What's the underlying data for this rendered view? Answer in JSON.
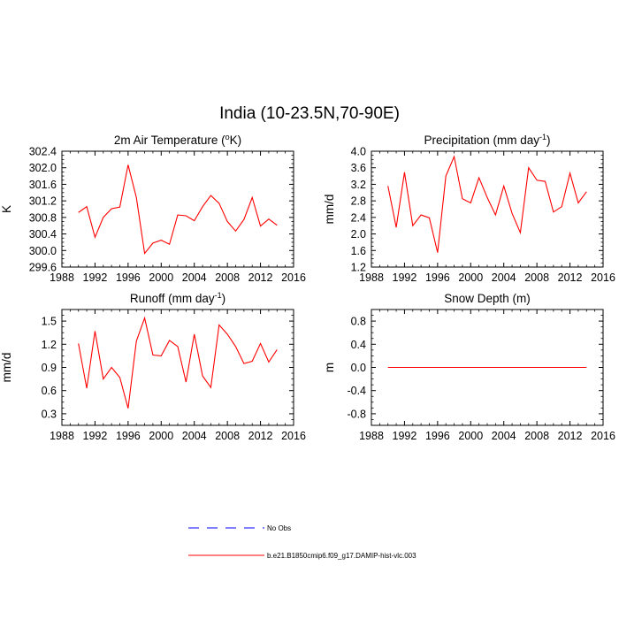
{
  "title": "India (10-23.5N,70-90E)",
  "colors": {
    "series": "#ff0000",
    "obs": "#0000ff",
    "axis": "#000000"
  },
  "legend": [
    {
      "label": "No Obs",
      "style": "dashed",
      "color": "#0000ff"
    },
    {
      "label": "b.e21.B1850cmip6.f09_g17.DAMIP-hist-vlc.003",
      "style": "solid",
      "color": "#ff0000"
    }
  ],
  "chart_data": [
    {
      "type": "line",
      "title": "2m Air Temperature",
      "title_unit_pre": " (",
      "title_sup": "o",
      "title_unit_post": "K)",
      "xlabel": "",
      "ylabel": "K",
      "xlim": [
        1988,
        2016
      ],
      "ylim": [
        299.6,
        302.4
      ],
      "xticks": [
        1988,
        1992,
        1996,
        2000,
        2004,
        2008,
        2012,
        2016
      ],
      "xtick_labels": [
        "1988",
        "1992",
        "1996",
        "2000",
        "2004",
        "2008",
        "2012",
        "2016"
      ],
      "yticks": [
        299.6,
        300.0,
        300.4,
        300.8,
        301.2,
        301.6,
        302.0,
        302.4
      ],
      "ytick_labels": [
        "299.6",
        "300.0",
        "300.4",
        "300.8",
        "301.2",
        "301.6",
        "302.0",
        "302.4"
      ],
      "series": [
        {
          "name": "b.e21.B1850cmip6.f09_g17.DAMIP-hist-vlc.003",
          "x": [
            1990,
            1991,
            1992,
            1993,
            1994,
            1995,
            1996,
            1997,
            1998,
            1999,
            2000,
            2001,
            2002,
            2003,
            2004,
            2005,
            2006,
            2007,
            2008,
            2009,
            2010,
            2011,
            2012,
            2013,
            2014
          ],
          "y": [
            300.92,
            301.06,
            300.32,
            300.8,
            301.01,
            301.05,
            302.07,
            301.28,
            299.93,
            300.18,
            300.25,
            300.15,
            300.86,
            300.84,
            300.72,
            301.06,
            301.33,
            301.14,
            300.7,
            300.47,
            300.75,
            301.28,
            300.59,
            300.76,
            300.61
          ]
        }
      ]
    },
    {
      "type": "line",
      "title": "Precipitation",
      "title_unit_pre": " (mm day",
      "title_sup": "-1",
      "title_unit_post": ")",
      "xlabel": "",
      "ylabel": "mm/d",
      "xlim": [
        1988,
        2016
      ],
      "ylim": [
        1.2,
        4.0
      ],
      "xticks": [
        1988,
        1992,
        1996,
        2000,
        2004,
        2008,
        2012,
        2016
      ],
      "xtick_labels": [
        "1988",
        "1992",
        "1996",
        "2000",
        "2004",
        "2008",
        "2012",
        "2016"
      ],
      "yticks": [
        1.2,
        1.6,
        2.0,
        2.4,
        2.8,
        3.2,
        3.6,
        4.0
      ],
      "ytick_labels": [
        "1.2",
        "1.6",
        "2.0",
        "2.4",
        "2.8",
        "3.2",
        "3.6",
        "4.0"
      ],
      "series": [
        {
          "name": "b.e21.B1850cmip6.f09_g17.DAMIP-hist-vlc.003",
          "x": [
            1990,
            1991,
            1992,
            1993,
            1994,
            1995,
            1996,
            1997,
            1998,
            1999,
            2000,
            2001,
            2002,
            2003,
            2004,
            2005,
            2006,
            2007,
            2008,
            2009,
            2010,
            2011,
            2012,
            2013,
            2014
          ],
          "y": [
            3.16,
            2.16,
            3.49,
            2.2,
            2.46,
            2.39,
            1.55,
            3.4,
            3.87,
            2.85,
            2.75,
            3.36,
            2.88,
            2.46,
            3.16,
            2.5,
            2.03,
            3.6,
            3.3,
            3.27,
            2.53,
            2.66,
            3.47,
            2.75,
            3.02
          ]
        }
      ]
    },
    {
      "type": "line",
      "title": "Runoff",
      "title_unit_pre": " (mm day",
      "title_sup": "-1",
      "title_unit_post": ")",
      "xlabel": "",
      "ylabel": "mm/d",
      "xlim": [
        1988,
        2016
      ],
      "ylim": [
        0.15,
        1.65
      ],
      "xticks": [
        1988,
        1992,
        1996,
        2000,
        2004,
        2008,
        2012,
        2016
      ],
      "xtick_labels": [
        "1988",
        "1992",
        "1996",
        "2000",
        "2004",
        "2008",
        "2012",
        "2016"
      ],
      "yticks": [
        0.3,
        0.6,
        0.9,
        1.2,
        1.5
      ],
      "ytick_labels": [
        "0.3",
        "0.6",
        "0.9",
        "1.2",
        "1.5"
      ],
      "series": [
        {
          "name": "b.e21.B1850cmip6.f09_g17.DAMIP-hist-vlc.003",
          "x": [
            1990,
            1991,
            1992,
            1993,
            1994,
            1995,
            1996,
            1997,
            1998,
            1999,
            2000,
            2001,
            2002,
            2003,
            2004,
            2005,
            2006,
            2007,
            2008,
            2009,
            2010,
            2011,
            2012,
            2013,
            2014
          ],
          "y": [
            1.21,
            0.63,
            1.37,
            0.75,
            0.9,
            0.77,
            0.37,
            1.24,
            1.54,
            1.06,
            1.05,
            1.25,
            1.17,
            0.71,
            1.33,
            0.79,
            0.64,
            1.45,
            1.33,
            1.17,
            0.95,
            0.98,
            1.21,
            0.97,
            1.13
          ]
        }
      ]
    },
    {
      "type": "line",
      "title": "Snow Depth (m)",
      "title_unit_pre": "",
      "title_sup": "",
      "title_unit_post": "",
      "xlabel": "",
      "ylabel": "m",
      "xlim": [
        1988,
        2016
      ],
      "ylim": [
        -1.0,
        1.0
      ],
      "xticks": [
        1988,
        1992,
        1996,
        2000,
        2004,
        2008,
        2012,
        2016
      ],
      "xtick_labels": [
        "1988",
        "1992",
        "1996",
        "2000",
        "2004",
        "2008",
        "2012",
        "2016"
      ],
      "yticks": [
        -0.8,
        -0.4,
        0.0,
        0.4,
        0.8
      ],
      "ytick_labels": [
        "-0.8",
        "-0.4",
        "0.0",
        "0.4",
        "0.8"
      ],
      "series": [
        {
          "name": "b.e21.B1850cmip6.f09_g17.DAMIP-hist-vlc.003",
          "x": [
            1990,
            1991,
            1992,
            1993,
            1994,
            1995,
            1996,
            1997,
            1998,
            1999,
            2000,
            2001,
            2002,
            2003,
            2004,
            2005,
            2006,
            2007,
            2008,
            2009,
            2010,
            2011,
            2012,
            2013,
            2014
          ],
          "y": [
            0,
            0,
            0,
            0,
            0,
            0,
            0,
            0,
            0,
            0,
            0,
            0,
            0,
            0,
            0,
            0,
            0,
            0,
            0,
            0,
            0,
            0,
            0,
            0,
            0
          ]
        }
      ]
    }
  ]
}
